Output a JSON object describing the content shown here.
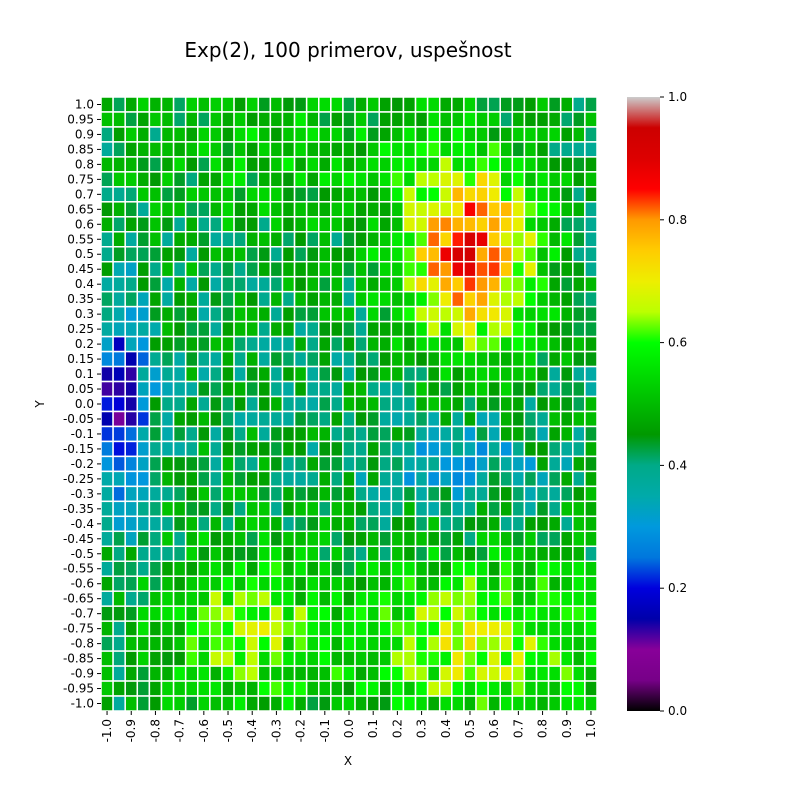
{
  "chart_data": {
    "type": "heatmap",
    "title": "Exp(2), 100 primerov, uspešnost",
    "xlabel": "X",
    "ylabel": "Y",
    "x_tick_labels": [
      "-1.0",
      "-0.9",
      "-0.8",
      "-0.7",
      "-0.6",
      "-0.5",
      "-0.4",
      "-0.3",
      "-0.2",
      "-0.1",
      "0.0",
      "0.1",
      "0.2",
      "0.3",
      "0.4",
      "0.5",
      "0.6",
      "0.7",
      "0.8",
      "0.9",
      "1.0"
    ],
    "y_tick_labels": [
      "1.0",
      "0.95",
      "0.9",
      "0.85",
      "0.8",
      "0.75",
      "0.7",
      "0.65",
      "0.6",
      "0.55",
      "0.5",
      "0.45",
      "0.4",
      "0.35",
      "0.3",
      "0.25",
      "0.2",
      "0.15",
      "0.1",
      "0.05",
      "0.0",
      "-0.05",
      "-0.1",
      "-0.15",
      "-0.2",
      "-0.25",
      "-0.3",
      "-0.35",
      "-0.4",
      "-0.45",
      "-0.5",
      "-0.55",
      "-0.6",
      "-0.65",
      "-0.7",
      "-0.75",
      "-0.8",
      "-0.85",
      "-0.9",
      "-0.95",
      "-1.0"
    ],
    "grid": {
      "columns": 41,
      "rows": 41,
      "x_range": [
        -1.0,
        1.0
      ],
      "y_range": [
        1.0,
        -1.0
      ],
      "step": 0.05
    },
    "colorbar": {
      "range": [
        0.0,
        1.0
      ],
      "ticks": [
        "0.0",
        "0.2",
        "0.4",
        "0.6",
        "0.8",
        "1.0"
      ],
      "colormap": "nipy_spectral"
    },
    "cell_gap_color": "#ffffff",
    "value_model": {
      "description": "cell value v(x,y) in [0,1]",
      "base": 0.43,
      "peaks": [
        {
          "x": 0.5,
          "y": 0.5,
          "amp": 0.42,
          "sx": 0.2,
          "sy": 0.22
        },
        {
          "x": 0.55,
          "y": -0.8,
          "amp": 0.23,
          "sx": 0.42,
          "sy": 0.2
        },
        {
          "x": -0.45,
          "y": -0.75,
          "amp": 0.18,
          "sx": 0.25,
          "sy": 0.2
        },
        {
          "x": -0.2,
          "y": 0.85,
          "amp": 0.08,
          "sx": 0.5,
          "sy": 0.2
        }
      ],
      "dips": [
        {
          "x": -0.95,
          "y": 0.0,
          "amp": 0.3,
          "sx": 0.08,
          "sy": 0.22
        },
        {
          "x": 0.45,
          "y": -0.2,
          "amp": 0.1,
          "sx": 0.25,
          "sy": 0.1
        }
      ],
      "noise": 0.08
    }
  }
}
